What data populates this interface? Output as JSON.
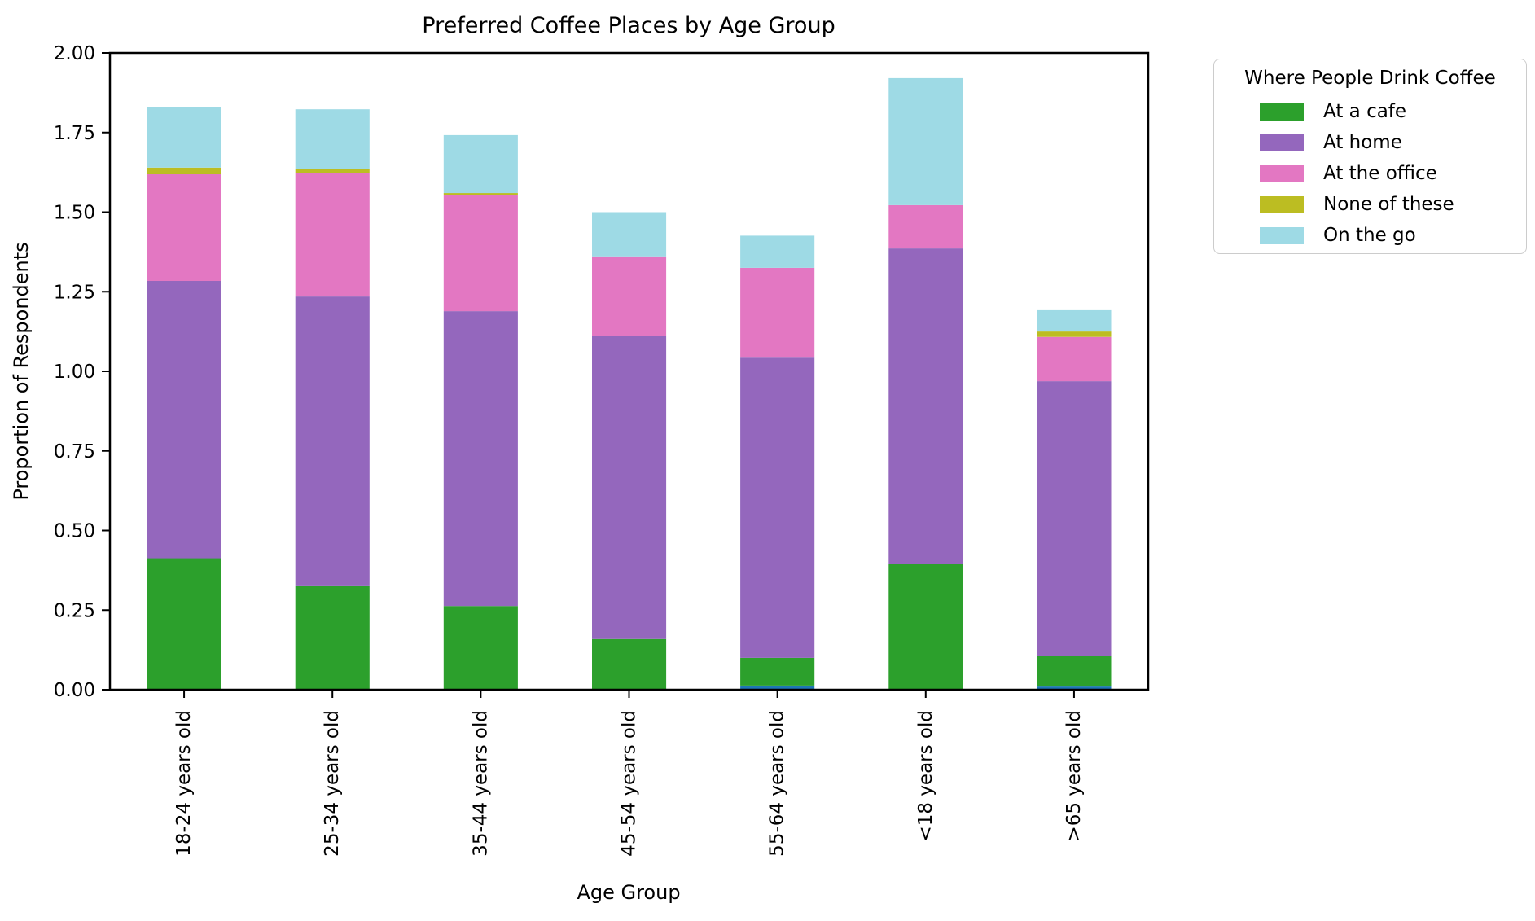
{
  "chart_data": {
    "type": "bar",
    "stacked": true,
    "title": "Preferred Coffee Places by Age Group",
    "xlabel": "Age Group",
    "ylabel": "Proportion of Respondents",
    "grid": false,
    "ylim": [
      0.0,
      2.0
    ],
    "ytick_labels": [
      "0.00",
      "0.25",
      "0.50",
      "0.75",
      "1.00",
      "1.25",
      "1.50",
      "1.75",
      "2.00"
    ],
    "categories": [
      "18-24 years old",
      "25-34 years old",
      "35-44 years old",
      "45-54 years old",
      "55-64 years old",
      "<18 years old",
      ">65 years old"
    ],
    "series": [
      {
        "name": "(unlabeled thin segment)",
        "color": "#1f77b4",
        "in_legend": false,
        "values": [
          0,
          0,
          0,
          0,
          0.013,
          0,
          0.01
        ]
      },
      {
        "name": "At a cafe",
        "color": "#2ca02c",
        "in_legend": true,
        "values": [
          0.413,
          0.325,
          0.263,
          0.159,
          0.087,
          0.394,
          0.097
        ]
      },
      {
        "name": "At home",
        "color": "#9467bd",
        "in_legend": true,
        "values": [
          0.871,
          0.91,
          0.926,
          0.951,
          0.943,
          0.992,
          0.862
        ]
      },
      {
        "name": "At the office",
        "color": "#e377c2",
        "in_legend": true,
        "values": [
          0.335,
          0.387,
          0.366,
          0.251,
          0.282,
          0.136,
          0.139
        ]
      },
      {
        "name": "None of these",
        "color": "#bcbd22",
        "in_legend": true,
        "values": [
          0.021,
          0.014,
          0.005,
          0.0,
          0.0,
          0.0,
          0.017
        ]
      },
      {
        "name": "On the go",
        "color": "#9edae5",
        "in_legend": true,
        "values": [
          0.191,
          0.187,
          0.182,
          0.139,
          0.101,
          0.399,
          0.067
        ]
      }
    ],
    "bar_totals": [
      1.831,
      1.823,
      1.742,
      1.5,
      1.426,
      1.921,
      1.192
    ],
    "legend": {
      "title": "Where People Drink Coffee",
      "position": "outside-upper-right",
      "entries": [
        "At a cafe",
        "At home",
        "At the office",
        "None of these",
        "On the go"
      ]
    }
  }
}
